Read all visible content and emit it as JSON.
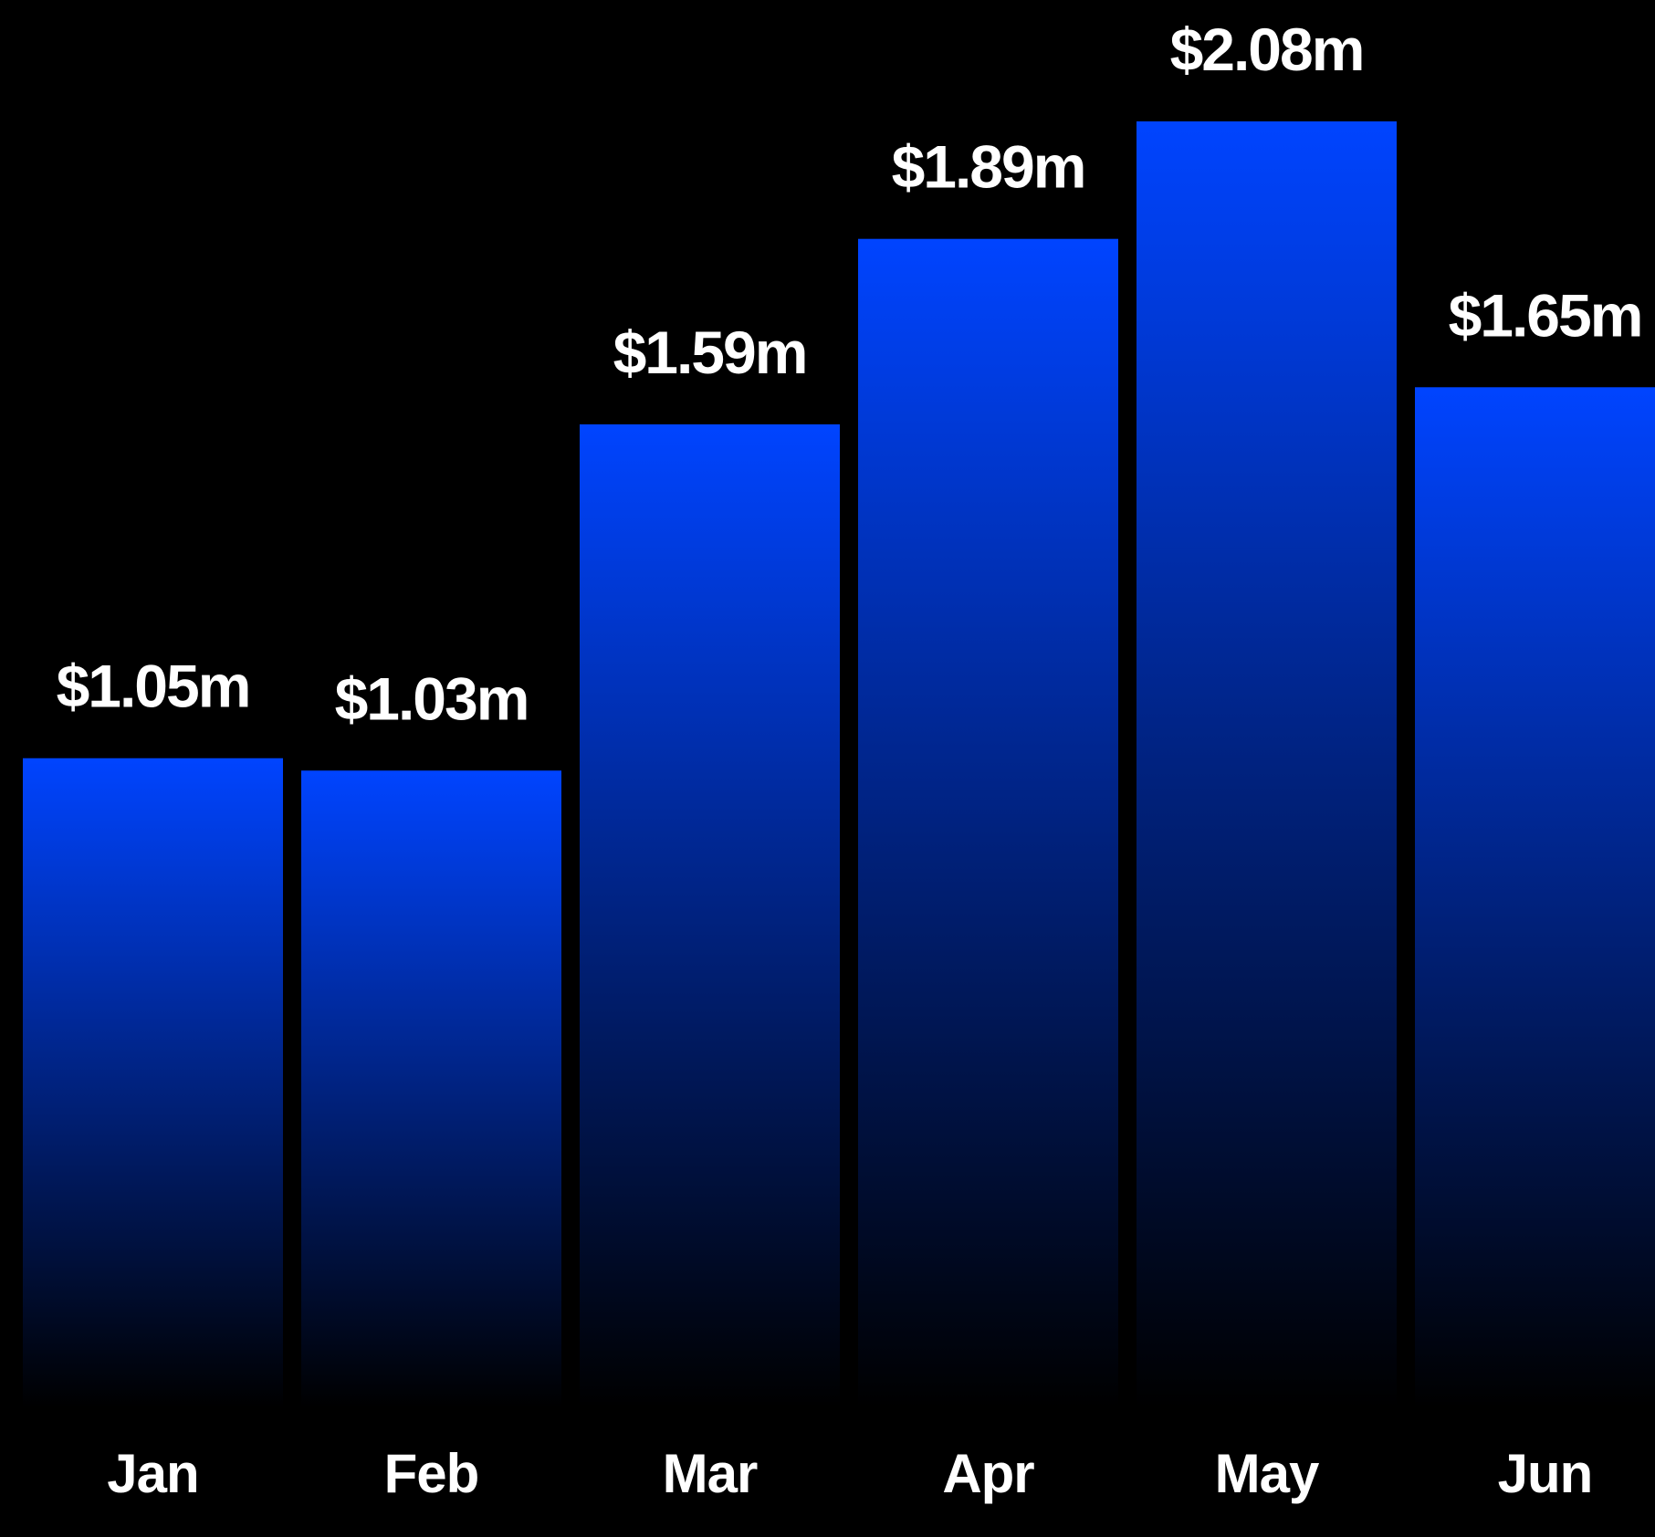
{
  "chart_data": {
    "type": "bar",
    "categories": [
      "Jan",
      "Feb",
      "Mar",
      "Apr",
      "May",
      "Jun"
    ],
    "values": [
      1.05,
      1.03,
      1.59,
      1.89,
      2.08,
      1.65
    ],
    "data_labels": [
      "$1.05m",
      "$1.03m",
      "$1.59m",
      "$1.89m",
      "$2.08m",
      "$1.65m"
    ],
    "title": "",
    "xlabel": "",
    "ylabel": "",
    "ylim": [
      0,
      2.08
    ],
    "grid": false,
    "legend": "none",
    "colors": {
      "background": "#000000",
      "bar_top": "#0044ff",
      "bar_bottom": "#000000",
      "text": "#ffffff"
    }
  }
}
